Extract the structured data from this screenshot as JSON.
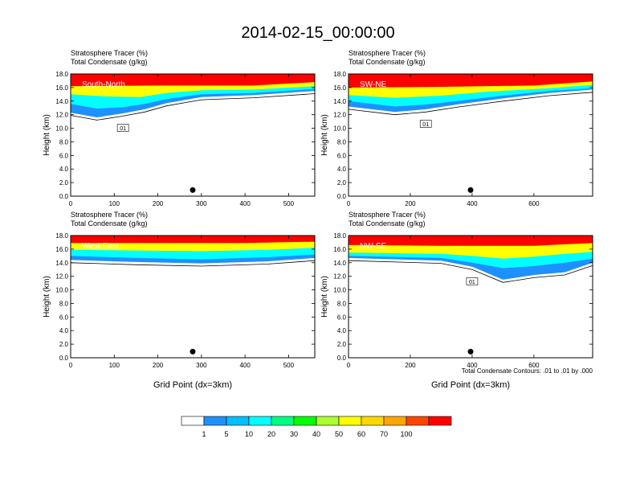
{
  "title": "2014-02-15_00:00:00",
  "footnote": "Total Condensate Contours: .01 to .01 by .000",
  "colorbar": {
    "labels": [
      "1",
      "5",
      "10",
      "20",
      "30",
      "40",
      "50",
      "60",
      "70",
      "100"
    ],
    "colors": [
      "#ffffff",
      "#1e90ff",
      "#00bfff",
      "#00ffff",
      "#00ff7f",
      "#00ff00",
      "#adff2f",
      "#ffff00",
      "#ffd700",
      "#ffa500",
      "#ff4500",
      "#ff0000"
    ]
  },
  "chart_data": [
    {
      "type": "heatmap",
      "panel": "South-North",
      "label": "South-North",
      "title_lines": [
        "Stratosphere Tracer   (%)",
        "Total Condensate   (g/kg)"
      ],
      "xlabel": "",
      "ylabel": "Height (km)",
      "xlim": [
        0,
        560
      ],
      "ylim": [
        0,
        18
      ],
      "xticks": [
        "0",
        "100",
        "200",
        "300",
        "400",
        "500"
      ],
      "xtick_values": [
        0,
        100,
        200,
        300,
        400,
        500
      ],
      "yticks": [
        "0.0",
        "2.0",
        "4.0",
        "6.0",
        "8.0",
        "10.0",
        "12.0",
        "14.0",
        "16.0",
        "18.0"
      ],
      "marker_x": 280,
      "contour_label": "01",
      "tracer_layers": [
        {
          "percent": 100,
          "x": [
            0,
            200,
            420,
            560
          ],
          "z": [
            16.2,
            16.3,
            16.3,
            16.8
          ]
        },
        {
          "percent": 50,
          "x": [
            0,
            80,
            160,
            220,
            300,
            420,
            560
          ],
          "z": [
            15.0,
            14.7,
            14.6,
            15.2,
            15.6,
            15.7,
            16.2
          ]
        },
        {
          "percent": 10,
          "x": [
            0,
            60,
            120,
            170,
            220,
            300,
            420,
            560
          ],
          "z": [
            13.6,
            12.9,
            13.1,
            13.6,
            14.3,
            15.0,
            15.2,
            15.8
          ]
        },
        {
          "percent": 1,
          "x": [
            0,
            60,
            120,
            170,
            220,
            300,
            420,
            560
          ],
          "z": [
            12.3,
            11.6,
            12.2,
            12.8,
            13.7,
            14.6,
            14.9,
            15.5
          ]
        }
      ]
    },
    {
      "type": "heatmap",
      "panel": "SW-NE",
      "label": "SW-NE",
      "title_lines": [
        "Stratosphere Tracer   (%)",
        "Total Condensate   (g/kg)"
      ],
      "xlabel": "",
      "ylabel": "Height (km)",
      "xlim": [
        0,
        790
      ],
      "ylim": [
        0,
        18
      ],
      "xticks": [
        "0",
        "200",
        "400",
        "600"
      ],
      "xtick_values": [
        0,
        200,
        400,
        600
      ],
      "yticks": [
        "0.0",
        "2.0",
        "4.0",
        "6.0",
        "8.0",
        "10.0",
        "12.0",
        "14.0",
        "16.0",
        "18.0"
      ],
      "marker_x": 395,
      "contour_label": "01",
      "tracer_layers": [
        {
          "percent": 100,
          "x": [
            0,
            300,
            600,
            790
          ],
          "z": [
            16.0,
            16.1,
            16.3,
            16.9
          ]
        },
        {
          "percent": 50,
          "x": [
            0,
            150,
            300,
            450,
            650,
            790
          ],
          "z": [
            14.9,
            14.5,
            14.8,
            15.4,
            15.9,
            16.4
          ]
        },
        {
          "percent": 10,
          "x": [
            0,
            150,
            250,
            350,
            500,
            650,
            790
          ],
          "z": [
            14.0,
            13.2,
            13.5,
            14.0,
            14.8,
            15.5,
            15.9
          ]
        },
        {
          "percent": 1,
          "x": [
            0,
            150,
            250,
            350,
            500,
            650,
            790
          ],
          "z": [
            13.2,
            12.4,
            12.8,
            13.5,
            14.4,
            15.2,
            15.7
          ]
        }
      ]
    },
    {
      "type": "heatmap",
      "panel": "West-East",
      "label": "West-East",
      "title_lines": [
        "Stratosphere Tracer   (%)",
        "Total Condensate   (g/kg)"
      ],
      "xlabel": "Grid Point (dx=3km)",
      "ylabel": "Height (km)",
      "xlim": [
        0,
        560
      ],
      "ylim": [
        0,
        18
      ],
      "xticks": [
        "0",
        "100",
        "200",
        "300",
        "400",
        "500"
      ],
      "xtick_values": [
        0,
        100,
        200,
        300,
        400,
        500
      ],
      "yticks": [
        "0.0",
        "2.0",
        "4.0",
        "6.0",
        "8.0",
        "10.0",
        "12.0",
        "14.0",
        "16.0",
        "18.0"
      ],
      "marker_x": 280,
      "contour_label": "",
      "tracer_layers": [
        {
          "percent": 100,
          "x": [
            0,
            200,
            400,
            560
          ],
          "z": [
            16.9,
            16.9,
            16.9,
            17.1
          ]
        },
        {
          "percent": 50,
          "x": [
            0,
            150,
            300,
            450,
            560
          ],
          "z": [
            15.9,
            15.8,
            15.7,
            15.9,
            16.2
          ]
        },
        {
          "percent": 10,
          "x": [
            0,
            150,
            300,
            450,
            560
          ],
          "z": [
            15.0,
            14.7,
            14.5,
            14.8,
            15.2
          ]
        },
        {
          "percent": 1,
          "x": [
            0,
            150,
            300,
            450,
            560
          ],
          "z": [
            14.4,
            14.1,
            13.9,
            14.2,
            14.7
          ]
        }
      ]
    },
    {
      "type": "heatmap",
      "panel": "NW-SE",
      "label": "NW-SE",
      "title_lines": [
        "Stratosphere Tracer   (%)",
        "Total Condensate   (g/kg)"
      ],
      "xlabel": "Grid Point (dx=3km)",
      "ylabel": "Height (km)",
      "xlim": [
        0,
        790
      ],
      "ylim": [
        0,
        18
      ],
      "xticks": [
        "0",
        "200",
        "400",
        "600"
      ],
      "xtick_values": [
        0,
        200,
        400,
        600
      ],
      "yticks": [
        "0.0",
        "2.0",
        "4.0",
        "6.0",
        "8.0",
        "10.0",
        "12.0",
        "14.0",
        "16.0",
        "18.0"
      ],
      "marker_x": 395,
      "contour_label": "01",
      "tracer_layers": [
        {
          "percent": 100,
          "x": [
            0,
            300,
            600,
            790
          ],
          "z": [
            16.6,
            16.5,
            16.5,
            16.9
          ]
        },
        {
          "percent": 50,
          "x": [
            0,
            300,
            400,
            500,
            600,
            700,
            790
          ],
          "z": [
            15.5,
            15.3,
            15.0,
            14.6,
            14.9,
            15.3,
            15.6
          ]
        },
        {
          "percent": 10,
          "x": [
            0,
            300,
            400,
            500,
            600,
            700,
            790
          ],
          "z": [
            15.0,
            14.7,
            14.0,
            13.2,
            13.5,
            14.0,
            14.6
          ]
        },
        {
          "percent": 1,
          "x": [
            0,
            300,
            400,
            500,
            600,
            700,
            790
          ],
          "z": [
            14.7,
            14.3,
            13.4,
            11.5,
            12.2,
            12.6,
            14.0
          ]
        }
      ]
    }
  ]
}
